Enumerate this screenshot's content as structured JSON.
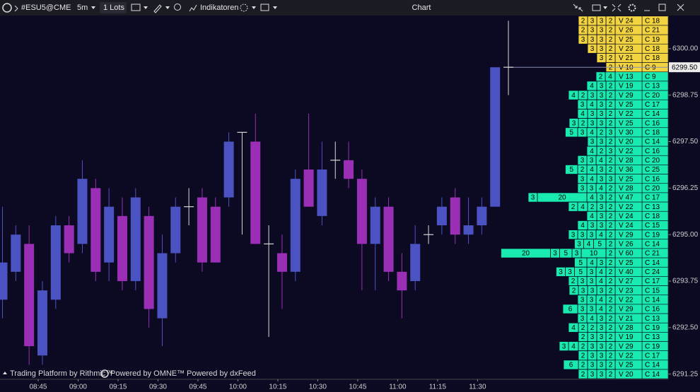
{
  "toolbar": {
    "symbol": "#ESU5@CME",
    "interval": "5m",
    "lots": "1 Lots",
    "indicators": "Indikatoren",
    "window_title": "Chart"
  },
  "footer": {
    "rithmic": "Trading Platform by Rithmic™",
    "omne": "Powered by OMNE™",
    "dxfeed": "Powered by dxFeed"
  },
  "chart_data": {
    "type": "candlestick",
    "categories": [
      null,
      null,
      null,
      "08:45",
      null,
      null,
      "09:00",
      null,
      null,
      "09:15",
      null,
      null,
      "09:30",
      null,
      null,
      "09:45",
      null,
      null,
      "10:00",
      null,
      null,
      "10:15",
      null,
      null,
      "10:30",
      null,
      null,
      "10:45",
      null,
      null,
      "11:00",
      null,
      null,
      "11:15",
      null,
      null,
      "11:30",
      null,
      null
    ],
    "open": [
      6293.25,
      6294.0,
      6294.75,
      6291.75,
      6293.25,
      6295.25,
      6294.75,
      6296.25,
      6294.25,
      6295.5,
      6293.75,
      6295.5,
      6292.75,
      6294.5,
      6295.75,
      6296.0,
      6295.75,
      6296.0,
      6297.75,
      6297.5,
      6294.75,
      6294.5,
      6294.0,
      6296.75,
      6295.5,
      6297.0,
      6297.0,
      6296.5,
      6294.75,
      6295.75,
      6294.0,
      6293.75,
      6295.0,
      6295.25,
      6296.0,
      6295.0,
      6295.25,
      6295.75,
      6299.5
    ],
    "high": [
      6295.75,
      6295.25,
      6295.25,
      6293.75,
      6295.5,
      6295.5,
      6297.0,
      6296.5,
      6296.25,
      6296.0,
      6296.25,
      6295.75,
      6295.0,
      6296.0,
      6296.25,
      6296.25,
      6296.0,
      6297.75,
      6297.75,
      6298.25,
      6295.25,
      6295.0,
      6296.75,
      6298.25,
      6297.5,
      6297.5,
      6297.5,
      6296.75,
      6296.0,
      6296.0,
      6294.5,
      6295.25,
      6295.25,
      6296.0,
      6296.25,
      6296.0,
      6296.0,
      6299.5,
      6300.75
    ],
    "low": [
      6292.75,
      6293.75,
      6291.5,
      6291.5,
      6293.0,
      6294.25,
      6294.5,
      6293.75,
      6293.75,
      6293.5,
      6293.5,
      6292.5,
      6292.0,
      6294.25,
      6295.25,
      6294.0,
      6294.25,
      6295.75,
      6295.0,
      6294.75,
      6292.25,
      6293.0,
      6293.75,
      6295.75,
      6295.25,
      6296.5,
      6296.25,
      6293.5,
      6293.5,
      6293.75,
      6292.75,
      6293.5,
      6294.75,
      6295.0,
      6294.75,
      6294.75,
      6295.0,
      6295.75,
      6298.75
    ],
    "close": [
      6294.25,
      6295.0,
      6292.0,
      6293.5,
      6295.25,
      6294.5,
      6296.5,
      6294.0,
      6295.75,
      6293.75,
      6296.0,
      6293.0,
      6294.5,
      6295.75,
      6295.75,
      6294.25,
      6294.25,
      6297.5,
      6297.75,
      6294.75,
      6294.75,
      6294.0,
      6296.5,
      6295.75,
      6296.75,
      6297.0,
      6296.5,
      6294.75,
      6295.75,
      6294.0,
      6293.5,
      6294.75,
      6295.0,
      6295.75,
      6295.0,
      6295.25,
      6295.75,
      6299.5,
      6299.5
    ],
    "up_color": "#4b52c2",
    "down_color": "#9a2fb5",
    "doji_color": "#d8d8d8",
    "ylim": [
      6291.11,
      6300.89
    ],
    "yticks": [
      {
        "value": 6300.0,
        "label": "6300.00"
      },
      {
        "value": 6298.75,
        "label": "6298.75"
      },
      {
        "value": 6297.5,
        "label": "6297.50"
      },
      {
        "value": 6296.25,
        "label": "6296.25"
      },
      {
        "value": 6295.0,
        "label": "6295.00"
      },
      {
        "value": 6293.75,
        "label": "6293.75"
      },
      {
        "value": 6292.5,
        "label": "6292.50"
      },
      {
        "value": 6291.25,
        "label": "6291.25"
      }
    ],
    "last_price": {
      "value": 6299.5,
      "label": "6299.50"
    }
  },
  "ladder": {
    "yellow_color": "#f2d440",
    "green_color": "#19eab0",
    "yellow_rows": [
      {
        "cells": [
          2,
          3,
          3,
          2
        ],
        "volume": "V 24",
        "count": "C 18"
      },
      {
        "cells": [
          2,
          3,
          3,
          2
        ],
        "volume": "V 26",
        "count": "C 21"
      },
      {
        "cells": [
          3,
          3,
          3,
          2
        ],
        "volume": "V 25",
        "count": "C 19"
      },
      {
        "cells": [
          3,
          3,
          2
        ],
        "volume": "V 23",
        "count": "C 18"
      },
      {
        "cells": [
          3,
          2
        ],
        "volume": "V 21",
        "count": "C 18"
      },
      {
        "cells": [
          2
        ],
        "volume": "V 10",
        "count": "C 9"
      }
    ],
    "green_rows": [
      {
        "cells": [
          2,
          4
        ],
        "volume": "V 13",
        "count": "C 9"
      },
      {
        "cells": [
          4,
          3,
          2
        ],
        "volume": "V 19",
        "count": "C 13"
      },
      {
        "cells": [
          4,
          2,
          3,
          3,
          2
        ],
        "volume": "V 29",
        "count": "C 20"
      },
      {
        "cells": [
          3,
          4,
          3,
          2
        ],
        "volume": "V 25",
        "count": "C 17"
      },
      {
        "cells": [
          4,
          3,
          3,
          2
        ],
        "volume": "V 22",
        "count": "C 14"
      },
      {
        "cells": [
          3,
          2,
          3,
          3,
          2
        ],
        "volume": "V 25",
        "count": "C 16"
      },
      {
        "cells": [
          5,
          3,
          4,
          2,
          3
        ],
        "volume": "V 30",
        "count": "C 18"
      },
      {
        "cells": [
          3,
          3,
          2
        ],
        "volume": "V 20",
        "count": "C 14"
      },
      {
        "cells": [
          4,
          2,
          3
        ],
        "volume": "V 22",
        "count": "C 16"
      },
      {
        "cells": [
          3,
          3,
          4,
          2
        ],
        "volume": "V 28",
        "count": "C 20"
      },
      {
        "cells": [
          5,
          2,
          4,
          3,
          2
        ],
        "volume": "V 36",
        "count": "C 25"
      },
      {
        "cells": [
          3,
          4,
          3,
          3
        ],
        "volume": "V 25",
        "count": "C 16"
      },
      {
        "cells": [
          3,
          3,
          4,
          2
        ],
        "volume": "V 28",
        "count": "C 20"
      },
      {
        "cells": [
          3,
          20,
          4,
          3,
          2
        ],
        "volume": "V 47",
        "count": "C 17"
      },
      {
        "cells": [
          2,
          4,
          2,
          3,
          2
        ],
        "volume": "V 22",
        "count": "C 13"
      },
      {
        "cells": [
          4,
          3,
          2
        ],
        "volume": "V 24",
        "count": "C 18"
      },
      {
        "cells": [
          4,
          3,
          3,
          2
        ],
        "volume": "V 24",
        "count": "C 15"
      },
      {
        "cells": [
          3,
          3,
          3,
          4,
          2
        ],
        "volume": "V 29",
        "count": "C 19"
      },
      {
        "cells": [
          3,
          4,
          5,
          2
        ],
        "volume": "V 26",
        "count": "C 14"
      },
      {
        "cells": [
          20,
          3,
          5,
          3,
          10,
          2
        ],
        "volume": "V 60",
        "count": "C 21"
      },
      {
        "cells": [
          5,
          4,
          3,
          2
        ],
        "volume": "V 25",
        "count": "C 14"
      },
      {
        "cells": [
          3,
          3,
          5,
          3,
          4,
          2
        ],
        "volume": "V 40",
        "count": "C 24"
      },
      {
        "cells": [
          2,
          3,
          3,
          4,
          2
        ],
        "volume": "V 27",
        "count": "C 17"
      },
      {
        "cells": [
          2,
          3,
          3,
          3,
          2
        ],
        "volume": "V 23",
        "count": "C 15"
      },
      {
        "cells": [
          3,
          3,
          4,
          2
        ],
        "volume": "V 22",
        "count": "C 14"
      },
      {
        "cells": [
          6,
          3,
          3,
          4,
          2
        ],
        "volume": "V 29",
        "count": "C 16"
      },
      {
        "cells": [
          3,
          4,
          3,
          2
        ],
        "volume": "V 21",
        "count": "C 13"
      },
      {
        "cells": [
          4,
          2,
          2,
          3,
          2
        ],
        "volume": "V 28",
        "count": "C 19"
      },
      {
        "cells": [
          2,
          3,
          3,
          2
        ],
        "volume": "V 19",
        "count": "C 13"
      },
      {
        "cells": [
          3,
          4,
          2,
          3,
          3,
          2
        ],
        "volume": "V 29",
        "count": "C 19"
      },
      {
        "cells": [
          2,
          3,
          3,
          2
        ],
        "volume": "V 22",
        "count": "C 17"
      },
      {
        "cells": [
          6,
          2,
          3,
          3,
          2
        ],
        "volume": "V 25",
        "count": "C 14"
      },
      {
        "cells": [
          2,
          3,
          3,
          2
        ],
        "volume": "V 20",
        "count": "C 14"
      }
    ]
  }
}
